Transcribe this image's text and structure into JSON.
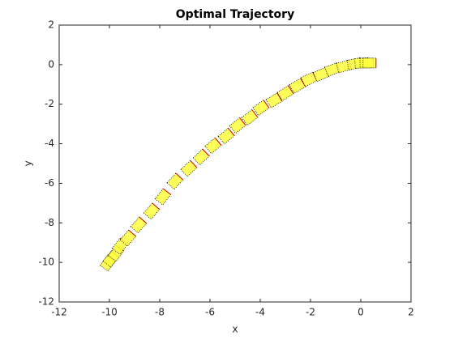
{
  "chart_data": {
    "type": "scatter",
    "title": "Optimal Trajectory",
    "x_label": "x",
    "y_label": "y",
    "xlim": [
      -12,
      2
    ],
    "ylim": [
      -12,
      2
    ],
    "xticks": [
      -12,
      -10,
      -8,
      -6,
      -4,
      -2,
      0,
      2
    ],
    "yticks": [
      -12,
      -10,
      -8,
      -6,
      -4,
      -2,
      0,
      2
    ],
    "series": [
      {
        "color": "#ffff40",
        "x": [
          -10.06,
          -9.94,
          -9.74,
          -9.58,
          -9.26,
          -8.84,
          -8.32,
          -7.87,
          -7.39,
          -6.84,
          -6.35,
          -5.87,
          -5.35,
          -4.9,
          -4.42,
          -3.97,
          -3.45,
          -3.0,
          -2.52,
          -2.06,
          -1.58,
          -1.13,
          -0.68,
          -0.26,
          0.03,
          0.23,
          0.35
        ],
        "values": [
          -10.03,
          -9.83,
          -9.54,
          -9.18,
          -8.77,
          -8.11,
          -7.41,
          -6.68,
          -5.9,
          -5.25,
          -4.67,
          -4.1,
          -3.61,
          -3.08,
          -2.67,
          -2.18,
          -1.81,
          -1.44,
          -1.07,
          -0.74,
          -0.5,
          -0.25,
          -0.09,
          0.04,
          0.08,
          0.08,
          0.08
        ]
      }
    ]
  }
}
